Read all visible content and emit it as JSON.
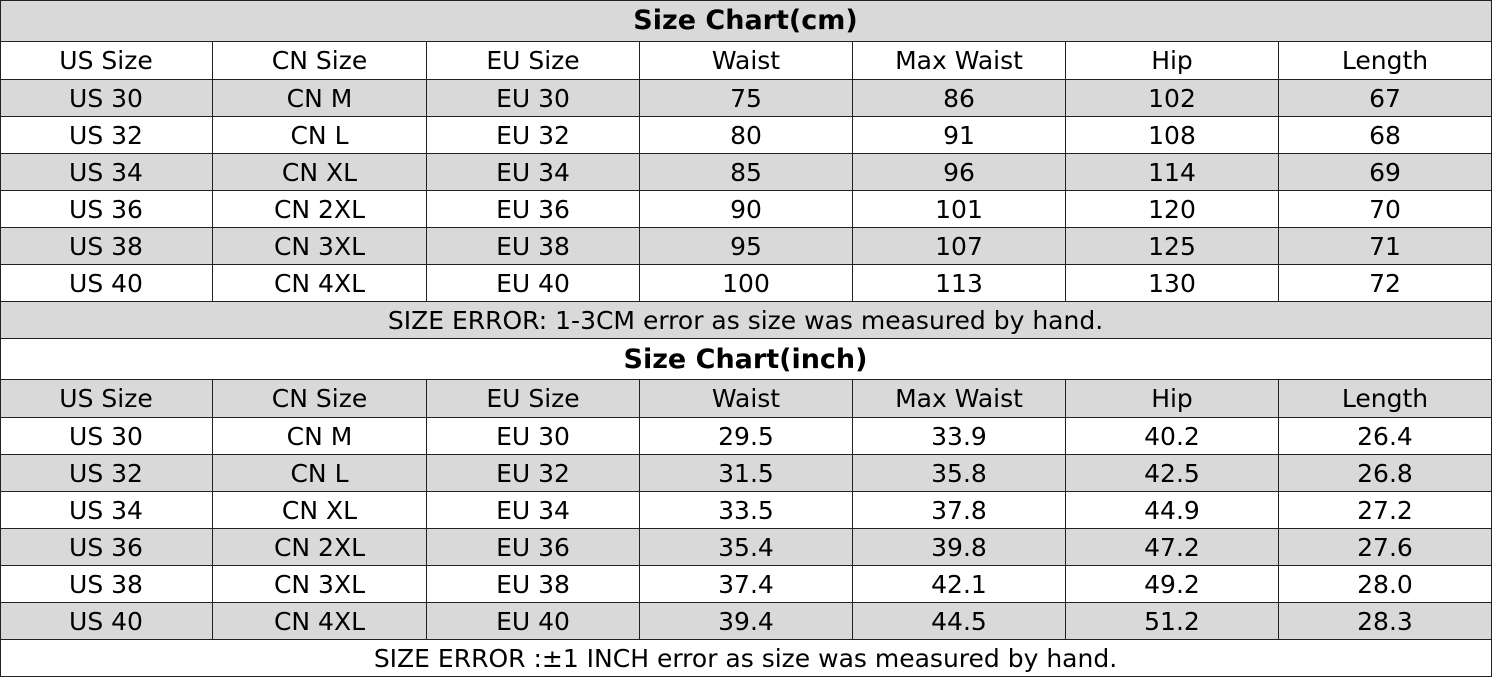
{
  "tables": [
    {
      "title": "Size Chart(cm)",
      "header": [
        "US Size",
        "CN Size",
        "EU Size",
        "Waist",
        "Max Waist",
        "Hip",
        "Length"
      ],
      "rows": [
        [
          "US 30",
          "CN M",
          "EU 30",
          "75",
          "86",
          "102",
          "67"
        ],
        [
          "US 32",
          "CN L",
          "EU 32",
          "80",
          "91",
          "108",
          "68"
        ],
        [
          "US 34",
          "CN XL",
          "EU 34",
          "85",
          "96",
          "114",
          "69"
        ],
        [
          "US 36",
          "CN 2XL",
          "EU 36",
          "90",
          "101",
          "120",
          "70"
        ],
        [
          "US 38",
          "CN 3XL",
          "EU 38",
          "95",
          "107",
          "125",
          "71"
        ],
        [
          "US 40",
          "CN 4XL",
          "EU 40",
          "100",
          "113",
          "130",
          "72"
        ]
      ],
      "note": "SIZE ERROR: 1-3CM error as size was measured by hand."
    },
    {
      "title": "Size Chart(inch)",
      "header": [
        "US Size",
        "CN Size",
        "EU Size",
        "Waist",
        "Max Waist",
        "Hip",
        "Length"
      ],
      "rows": [
        [
          "US 30",
          "CN M",
          "EU 30",
          "29.5",
          "33.9",
          "40.2",
          "26.4"
        ],
        [
          "US 32",
          "CN L",
          "EU 32",
          "31.5",
          "35.8",
          "42.5",
          "26.8"
        ],
        [
          "US 34",
          "CN XL",
          "EU 34",
          "33.5",
          "37.8",
          "44.9",
          "27.2"
        ],
        [
          "US 36",
          "CN 2XL",
          "EU 36",
          "35.4",
          "39.8",
          "47.2",
          "27.6"
        ],
        [
          "US 38",
          "CN 3XL",
          "EU 38",
          "37.4",
          "42.1",
          "49.2",
          "28.0"
        ],
        [
          "US 40",
          "CN 4XL",
          "EU 40",
          "39.4",
          "44.5",
          "51.2",
          "28.3"
        ]
      ],
      "note": "SIZE ERROR :±1 INCH error as size was measured by hand."
    }
  ]
}
